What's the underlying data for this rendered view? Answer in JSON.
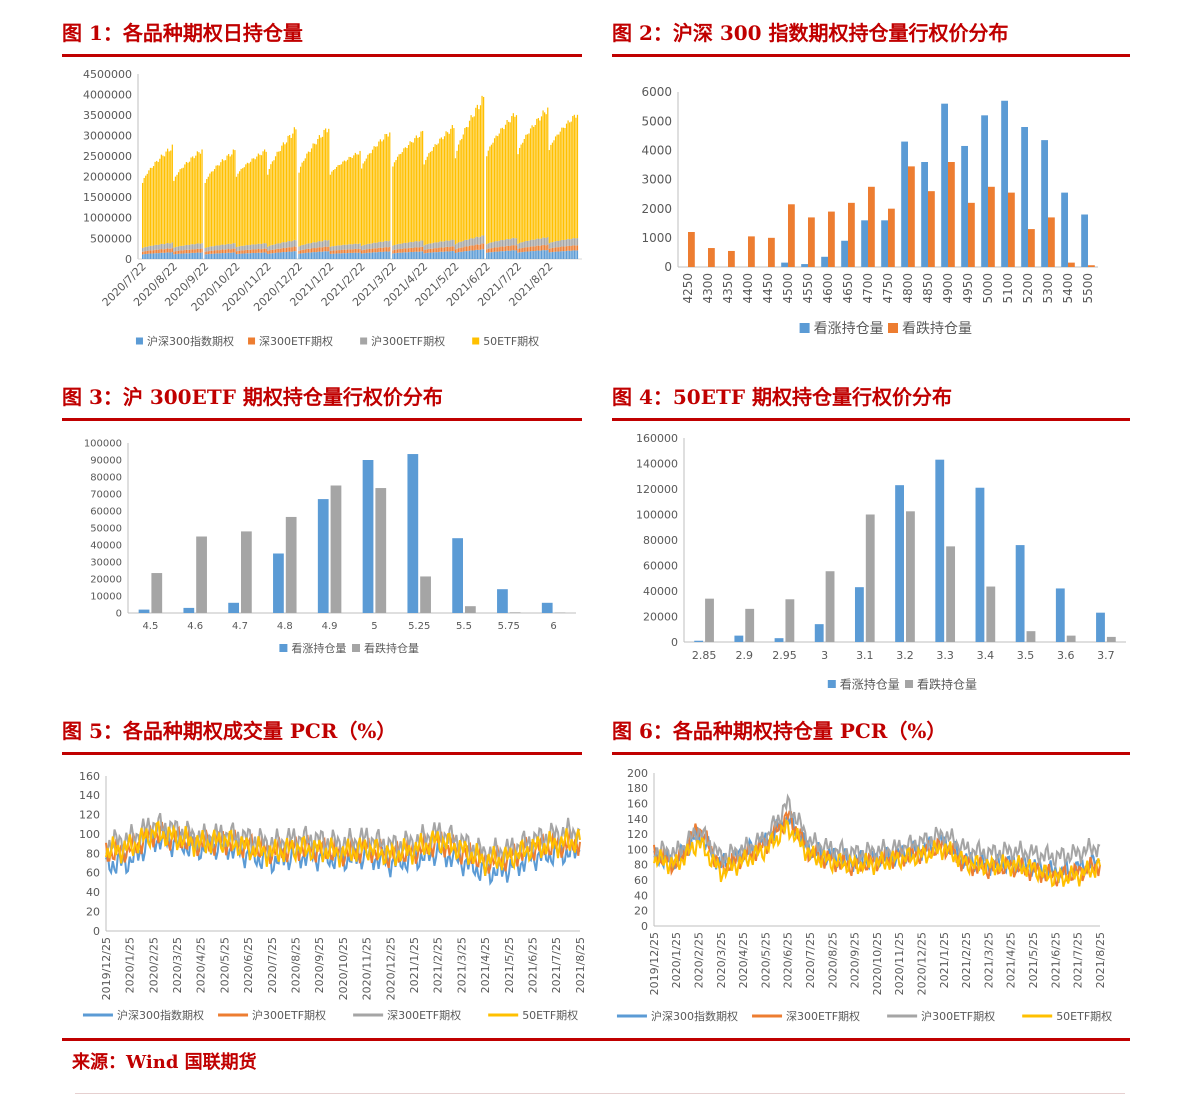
{
  "source": "来源：Wind 国联期货",
  "panels": [
    {
      "id": "fig1",
      "title": "图 1：各品种期权日持仓量",
      "chart_data": {
        "type": "bar",
        "y_ticks": [
          "0",
          "500000",
          "1000000",
          "1500000",
          "2000000",
          "2500000",
          "3000000",
          "3500000",
          "4000000",
          "4500000"
        ],
        "ylim": [
          0,
          4500000
        ],
        "x_ticks": [
          "2020/7/22",
          "2020/8/22",
          "2020/9/22",
          "2020/10/22",
          "2020/11/22",
          "2020/12/22",
          "2021/1/22",
          "2021/2/22",
          "2021/3/22",
          "2021/4/22",
          "2021/5/22",
          "2021/6/22",
          "2021/7/22",
          "2021/8/22"
        ],
        "legend": [
          "沪深300指数期权",
          "深300ETF期权",
          "沪300ETF期权",
          "50ETF期权"
        ],
        "colors": [
          "#5b9bd5",
          "#ed7d31",
          "#a5a5a5",
          "#ffc000"
        ],
        "stacked": true,
        "monthly_envelope": [
          [
            1850000,
            2800000
          ],
          [
            1900000,
            2750000
          ],
          [
            1850000,
            2700000
          ],
          [
            2000000,
            2700000
          ],
          [
            2050000,
            3300000
          ],
          [
            2100000,
            3300000
          ],
          [
            2050000,
            2650000
          ],
          [
            2200000,
            3200000
          ],
          [
            2250000,
            3150000
          ],
          [
            2300000,
            3300000
          ],
          [
            2450000,
            4100000
          ],
          [
            2500000,
            3650000
          ],
          [
            2550000,
            3750000
          ],
          [
            2650000,
            3650000
          ]
        ]
      }
    },
    {
      "id": "fig2",
      "title": "图 2：沪深 300 指数期权持仓量行权价分布",
      "chart_data": {
        "type": "bar",
        "categories": [
          "4250",
          "4300",
          "4350",
          "4400",
          "4450",
          "4500",
          "4550",
          "4600",
          "4650",
          "4700",
          "4750",
          "4800",
          "4850",
          "4900",
          "4950",
          "5000",
          "5100",
          "5200",
          "5300",
          "5400",
          "5500"
        ],
        "series": [
          {
            "name": "看涨持仓量",
            "color": "#5b9bd5",
            "values": [
              0,
              0,
              0,
              0,
              0,
              150,
              100,
              350,
              900,
              1600,
              1600,
              4300,
              3600,
              5600,
              4150,
              5200,
              5700,
              4800,
              4350,
              2550,
              1800
            ]
          },
          {
            "name": "看跌持仓量",
            "color": "#ed7d31",
            "values": [
              1200,
              650,
              550,
              1050,
              1000,
              2150,
              1700,
              1900,
              2200,
              2750,
              2000,
              3450,
              2600,
              3600,
              2200,
              2750,
              2550,
              1300,
              1700,
              150,
              60
            ]
          }
        ],
        "y_ticks": [
          "0",
          "1000",
          "2000",
          "3000",
          "4000",
          "5000",
          "6000"
        ],
        "ylim": [
          0,
          6000
        ]
      }
    },
    {
      "id": "fig3",
      "title": "图 3：沪 300ETF 期权持仓量行权价分布",
      "chart_data": {
        "type": "bar",
        "categories": [
          "4.5",
          "4.6",
          "4.7",
          "4.8",
          "4.9",
          "5",
          "5.25",
          "5.5",
          "5.75",
          "6"
        ],
        "series": [
          {
            "name": "看涨持仓量",
            "color": "#5b9bd5",
            "values": [
              2000,
              3000,
              6000,
              35000,
              67000,
              90000,
              93500,
              44000,
              14000,
              6000
            ]
          },
          {
            "name": "看跌持仓量",
            "color": "#a5a5a5",
            "values": [
              23500,
              45000,
              48000,
              56500,
              75000,
              73500,
              21500,
              4000,
              400,
              300
            ]
          }
        ],
        "y_ticks": [
          "0",
          "10000",
          "20000",
          "30000",
          "40000",
          "50000",
          "60000",
          "70000",
          "80000",
          "90000",
          "100000"
        ],
        "ylim": [
          0,
          100000
        ]
      }
    },
    {
      "id": "fig4",
      "title": "图 4：50ETF 期权持仓量行权价分布",
      "chart_data": {
        "type": "bar",
        "categories": [
          "2.85",
          "2.9",
          "2.95",
          "3",
          "3.1",
          "3.2",
          "3.3",
          "3.4",
          "3.5",
          "3.6",
          "3.7"
        ],
        "series": [
          {
            "name": "看涨持仓量",
            "color": "#5b9bd5",
            "values": [
              1000,
              5000,
              3000,
              14000,
              43000,
              123000,
              143000,
              121000,
              76000,
              42000,
              23000
            ]
          },
          {
            "name": "看跌持仓量",
            "color": "#a5a5a5",
            "values": [
              34000,
              26000,
              33500,
              55500,
              100000,
              102500,
              75000,
              43500,
              8500,
              5000,
              4000
            ]
          }
        ],
        "y_ticks": [
          "0",
          "20000",
          "40000",
          "60000",
          "80000",
          "100000",
          "120000",
          "140000",
          "160000"
        ],
        "ylim": [
          0,
          160000
        ]
      }
    },
    {
      "id": "fig5",
      "title": "图 5：各品种期权成交量 PCR（%）",
      "chart_data": {
        "type": "line",
        "y_ticks": [
          "0",
          "20",
          "40",
          "60",
          "80",
          "100",
          "120",
          "140",
          "160"
        ],
        "ylim": [
          0,
          160
        ],
        "x_ticks": [
          "2019/12/25",
          "2020/1/25",
          "2020/2/25",
          "2020/3/25",
          "2020/4/25",
          "2020/5/25",
          "2020/6/25",
          "2020/7/25",
          "2020/8/25",
          "2020/9/25",
          "2020/10/25",
          "2020/11/25",
          "2020/12/25",
          "2021/1/25",
          "2021/2/25",
          "2021/3/25",
          "2021/4/25",
          "2021/5/25",
          "2021/6/25",
          "2021/7/25",
          "2021/8/25"
        ],
        "series": [
          {
            "name": "沪深300指数期权",
            "color": "#5b9bd5",
            "values": [
              68,
              72,
              95,
              90,
              85,
              88,
              78,
              72,
              78,
              76,
              74,
              78,
              70,
              74,
              82,
              72,
              60,
              64,
              76,
              80,
              82
            ]
          },
          {
            "name": "沪300ETF期权",
            "color": "#ed7d31",
            "values": [
              80,
              85,
              100,
              95,
              90,
              92,
              88,
              82,
              86,
              84,
              80,
              85,
              78,
              82,
              92,
              82,
              72,
              76,
              86,
              88,
              92
            ]
          },
          {
            "name": "深300ETF期权",
            "color": "#a5a5a5",
            "values": [
              90,
              95,
              110,
              104,
              96,
              100,
              96,
              90,
              96,
              94,
              90,
              96,
              88,
              92,
              102,
              92,
              80,
              84,
              94,
              100,
              104
            ]
          },
          {
            "name": "50ETF期权",
            "color": "#ffc000",
            "values": [
              82,
              86,
              102,
              96,
              90,
              94,
              86,
              80,
              86,
              84,
              80,
              86,
              78,
              84,
              94,
              84,
              72,
              76,
              86,
              90,
              94
            ]
          }
        ]
      }
    },
    {
      "id": "fig6",
      "title": "图 6：各品种期权持仓量 PCR（%）",
      "chart_data": {
        "type": "line",
        "y_ticks": [
          "0",
          "20",
          "40",
          "60",
          "80",
          "100",
          "120",
          "140",
          "160",
          "180",
          "200"
        ],
        "ylim": [
          0,
          200
        ],
        "x_ticks": [
          "2019/12/25",
          "2020/1/25",
          "2020/2/25",
          "2020/3/25",
          "2020/4/25",
          "2020/5/25",
          "2020/6/25",
          "2020/7/25",
          "2020/8/25",
          "2020/9/25",
          "2020/10/25",
          "2020/11/25",
          "2020/12/25",
          "2021/1/25",
          "2021/2/25",
          "2021/3/25",
          "2021/4/25",
          "2021/5/25",
          "2021/6/25",
          "2021/7/25",
          "2021/8/25"
        ],
        "series": [
          {
            "name": "沪深300指数期权",
            "color": "#5b9bd5",
            "values": [
              90,
              85,
              120,
              80,
              95,
              110,
              140,
              100,
              90,
              85,
              88,
              92,
              100,
              110,
              85,
              80,
              82,
              78,
              70,
              75,
              85
            ]
          },
          {
            "name": "深300ETF期权",
            "color": "#ed7d31",
            "values": [
              95,
              80,
              130,
              75,
              90,
              105,
              145,
              95,
              85,
              78,
              85,
              90,
              95,
              105,
              80,
              75,
              78,
              72,
              65,
              70,
              80
            ]
          },
          {
            "name": "沪300ETF期权",
            "color": "#a5a5a5",
            "values": [
              100,
              95,
              125,
              90,
              100,
              115,
              160,
              110,
              100,
              95,
              98,
              102,
              110,
              120,
              100,
              95,
              98,
              95,
              90,
              95,
              105
            ]
          },
          {
            "name": "50ETF期权",
            "color": "#ffc000",
            "values": [
              88,
              80,
              110,
              70,
              85,
              100,
              130,
              92,
              84,
              80,
              82,
              88,
              92,
              102,
              82,
              78,
              80,
              75,
              62,
              66,
              78
            ]
          }
        ]
      }
    }
  ]
}
